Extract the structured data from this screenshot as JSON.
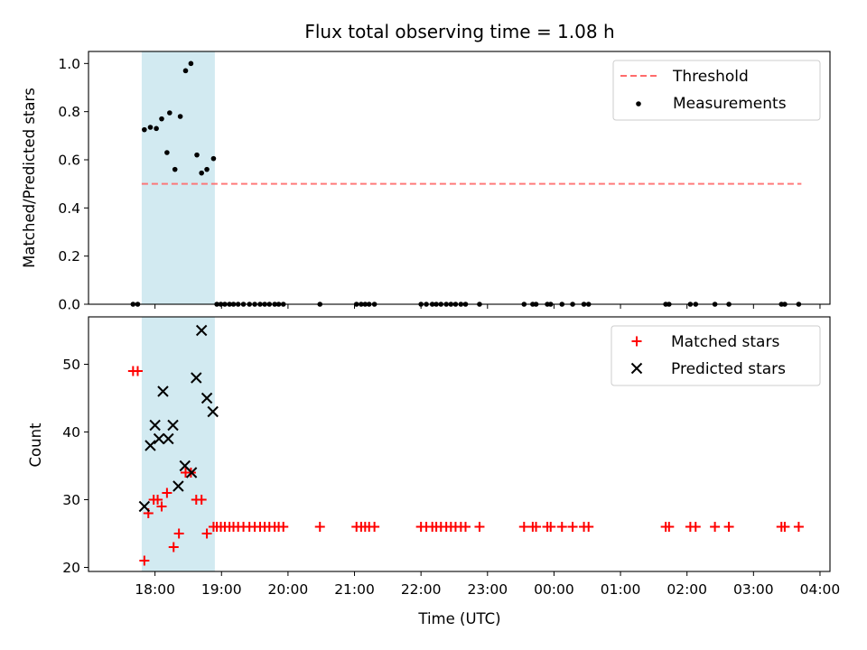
{
  "title": "Flux total observing time = 1.08 h",
  "xlabel": "Time (UTC)",
  "x_ticks": [
    "18:00",
    "19:00",
    "20:00",
    "21:00",
    "22:00",
    "23:00",
    "00:00",
    "01:00",
    "02:00",
    "03:00",
    "04:00"
  ],
  "colors": {
    "shade": "#add8e6",
    "threshold": "#ff6b6b",
    "measurements": "#000000",
    "matched": "#ff0000",
    "predicted": "#000000"
  },
  "chart_data": [
    {
      "type": "scatter",
      "ylabel": "Matched/Predicted stars",
      "ylim": [
        0,
        1.05
      ],
      "y_ticks": [
        "0.0",
        "0.2",
        "0.4",
        "0.6",
        "0.8",
        "1.0"
      ],
      "xlim": [
        17.0,
        28.15
      ],
      "shaded_span": [
        17.8,
        18.9
      ],
      "legend": [
        "Threshold",
        "Measurements"
      ],
      "legend_position": "top-right",
      "threshold": {
        "name": "Threshold",
        "y": 0.5,
        "x": [
          17.8,
          27.72
        ]
      },
      "series": [
        {
          "name": "Measurements",
          "x": [
            17.84,
            17.93,
            18.02,
            18.1,
            18.18,
            18.22,
            18.3,
            18.38,
            18.46,
            18.54,
            18.63,
            18.7,
            18.78,
            18.88,
            17.67,
            17.74,
            18.93,
            18.99,
            19.05,
            19.12,
            19.18,
            19.25,
            19.33,
            19.42,
            19.5,
            19.58,
            19.65,
            19.72,
            19.8,
            19.86,
            19.93,
            20.48,
            21.03,
            21.1,
            21.16,
            21.22,
            21.3,
            22.0,
            22.08,
            22.17,
            22.23,
            22.3,
            22.38,
            22.45,
            22.52,
            22.6,
            22.67,
            22.88,
            23.55,
            23.68,
            23.73,
            23.9,
            23.95,
            24.12,
            24.28,
            24.45,
            24.52,
            25.68,
            25.73,
            26.05,
            26.13,
            26.42,
            26.63,
            27.42,
            27.47,
            27.68
          ],
          "y": [
            0.725,
            0.735,
            0.73,
            0.77,
            0.63,
            0.795,
            0.56,
            0.78,
            0.97,
            1.0,
            0.62,
            0.545,
            0.56,
            0.605,
            0,
            0,
            0,
            0,
            0,
            0,
            0,
            0,
            0,
            0,
            0,
            0,
            0,
            0,
            0,
            0,
            0,
            0,
            0,
            0,
            0,
            0,
            0,
            0,
            0,
            0,
            0,
            0,
            0,
            0,
            0,
            0,
            0,
            0,
            0,
            0,
            0,
            0,
            0,
            0,
            0,
            0,
            0,
            0,
            0,
            0,
            0,
            0,
            0,
            0,
            0,
            0
          ]
        }
      ]
    },
    {
      "type": "scatter",
      "ylabel": "Count",
      "ylim": [
        19.4,
        57.0
      ],
      "y_ticks": [
        "20",
        "30",
        "40",
        "50"
      ],
      "xlim": [
        17.0,
        28.15
      ],
      "shaded_span": [
        17.8,
        18.9
      ],
      "legend": [
        "Matched stars",
        "Predicted stars"
      ],
      "legend_position": "top-right",
      "series": [
        {
          "name": "Matched stars",
          "x": [
            17.67,
            17.74,
            17.84,
            17.9,
            17.98,
            18.04,
            18.1,
            18.18,
            18.28,
            18.36,
            18.46,
            18.54,
            18.62,
            18.7,
            18.78,
            18.88,
            18.93,
            18.99,
            19.05,
            19.12,
            19.18,
            19.25,
            19.33,
            19.42,
            19.5,
            19.58,
            19.65,
            19.72,
            19.8,
            19.86,
            19.93,
            20.48,
            21.03,
            21.1,
            21.16,
            21.22,
            21.3,
            22.0,
            22.08,
            22.17,
            22.23,
            22.3,
            22.38,
            22.45,
            22.52,
            22.6,
            22.67,
            22.88,
            23.55,
            23.68,
            23.73,
            23.9,
            23.95,
            24.12,
            24.28,
            24.45,
            24.52,
            25.68,
            25.73,
            26.05,
            26.13,
            26.42,
            26.63,
            27.42,
            27.47,
            27.68
          ],
          "y": [
            49,
            49,
            21,
            28,
            30,
            30,
            29,
            31,
            23,
            25,
            34,
            34,
            30,
            30,
            25,
            26,
            26,
            26,
            26,
            26,
            26,
            26,
            26,
            26,
            26,
            26,
            26,
            26,
            26,
            26,
            26,
            26,
            26,
            26,
            26,
            26,
            26,
            26,
            26,
            26,
            26,
            26,
            26,
            26,
            26,
            26,
            26,
            26,
            26,
            26,
            26,
            26,
            26,
            26,
            26,
            26,
            26,
            26,
            26,
            26,
            26,
            26,
            26,
            26,
            26,
            26
          ]
        },
        {
          "name": "Predicted stars",
          "x": [
            17.84,
            17.93,
            18.0,
            18.06,
            18.12,
            18.2,
            18.27,
            18.35,
            18.45,
            18.55,
            18.62,
            18.7,
            18.78,
            18.87
          ],
          "y": [
            29,
            38,
            41,
            39,
            46,
            39,
            41,
            32,
            35,
            34,
            48,
            55,
            45,
            43
          ]
        }
      ]
    }
  ]
}
